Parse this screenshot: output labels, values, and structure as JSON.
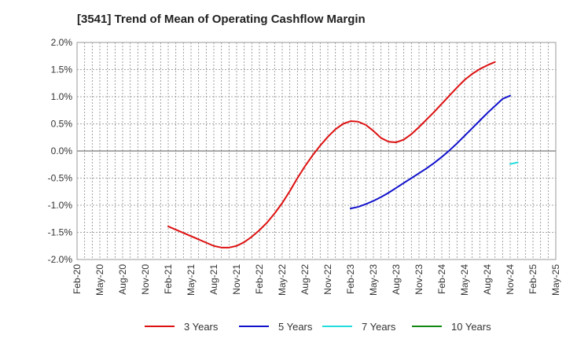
{
  "chart_data": {
    "type": "line",
    "title": "[3541]  Trend of Mean of Operating Cashflow Margin",
    "xlabel": "",
    "ylabel": "",
    "categories": [
      "Feb-20",
      "May-20",
      "Aug-20",
      "Nov-20",
      "Feb-21",
      "May-21",
      "Aug-21",
      "Nov-21",
      "Feb-22",
      "May-22",
      "Aug-22",
      "Nov-22",
      "Feb-23",
      "May-23",
      "Aug-23",
      "Nov-23",
      "Feb-24",
      "May-24",
      "Aug-24",
      "Nov-24",
      "Feb-25",
      "May-25"
    ],
    "y_ticks": [
      "2.0%",
      "1.5%",
      "1.0%",
      "0.5%",
      "0.0%",
      "-0.5%",
      "-1.0%",
      "-1.5%",
      "-2.0%"
    ],
    "ylim": [
      -2.0,
      2.0
    ],
    "y_unit": "%",
    "grid": true,
    "legend_position": "bottom",
    "series": [
      {
        "name": "3 Years",
        "color": "#dd1111",
        "points": [
          [
            "Feb-21",
            -1.39
          ],
          [
            "Mar-21",
            -1.45
          ],
          [
            "Apr-21",
            -1.51
          ],
          [
            "May-21",
            -1.57
          ],
          [
            "Jun-21",
            -1.63
          ],
          [
            "Jul-21",
            -1.69
          ],
          [
            "Aug-21",
            -1.75
          ],
          [
            "Sep-21",
            -1.78
          ],
          [
            "Oct-21",
            -1.78
          ],
          [
            "Nov-21",
            -1.75
          ],
          [
            "Dec-21",
            -1.68
          ],
          [
            "Jan-22",
            -1.58
          ],
          [
            "Feb-22",
            -1.46
          ],
          [
            "Mar-22",
            -1.32
          ],
          [
            "Apr-22",
            -1.15
          ],
          [
            "May-22",
            -0.96
          ],
          [
            "Jun-22",
            -0.74
          ],
          [
            "Jul-22",
            -0.5
          ],
          [
            "Aug-22",
            -0.28
          ],
          [
            "Sep-22",
            -0.08
          ],
          [
            "Oct-22",
            0.1
          ],
          [
            "Nov-22",
            0.26
          ],
          [
            "Dec-22",
            0.4
          ],
          [
            "Jan-23",
            0.5
          ],
          [
            "Feb-23",
            0.55
          ],
          [
            "Mar-23",
            0.54
          ],
          [
            "Apr-23",
            0.48
          ],
          [
            "May-23",
            0.37
          ],
          [
            "Jun-23",
            0.24
          ],
          [
            "Jul-23",
            0.17
          ],
          [
            "Aug-23",
            0.16
          ],
          [
            "Sep-23",
            0.21
          ],
          [
            "Oct-23",
            0.31
          ],
          [
            "Nov-23",
            0.44
          ],
          [
            "Dec-23",
            0.58
          ],
          [
            "Jan-24",
            0.72
          ],
          [
            "Feb-24",
            0.87
          ],
          [
            "Mar-24",
            1.02
          ],
          [
            "Apr-24",
            1.17
          ],
          [
            "May-24",
            1.31
          ],
          [
            "Jun-24",
            1.42
          ],
          [
            "Jul-24",
            1.51
          ],
          [
            "Aug-24",
            1.58
          ],
          [
            "Sep-24",
            1.64
          ]
        ]
      },
      {
        "name": "5 Years",
        "color": "#1111cc",
        "points": [
          [
            "Feb-23",
            -1.06
          ],
          [
            "Mar-23",
            -1.03
          ],
          [
            "Apr-23",
            -0.98
          ],
          [
            "May-23",
            -0.92
          ],
          [
            "Jun-23",
            -0.85
          ],
          [
            "Jul-23",
            -0.77
          ],
          [
            "Aug-23",
            -0.68
          ],
          [
            "Sep-23",
            -0.59
          ],
          [
            "Oct-23",
            -0.5
          ],
          [
            "Nov-23",
            -0.41
          ],
          [
            "Dec-23",
            -0.32
          ],
          [
            "Jan-24",
            -0.22
          ],
          [
            "Feb-24",
            -0.11
          ],
          [
            "Mar-24",
            0.01
          ],
          [
            "Apr-24",
            0.14
          ],
          [
            "May-24",
            0.28
          ],
          [
            "Jun-24",
            0.42
          ],
          [
            "Jul-24",
            0.56
          ],
          [
            "Aug-24",
            0.7
          ],
          [
            "Sep-24",
            0.83
          ],
          [
            "Oct-24",
            0.96
          ],
          [
            "Nov-24",
            1.02
          ]
        ]
      },
      {
        "name": "7 Years",
        "color": "#22dddd",
        "points": [
          [
            "Nov-24",
            -0.24
          ],
          [
            "Dec-24",
            -0.21
          ]
        ]
      },
      {
        "name": "10 Years",
        "color": "#118811",
        "points": []
      }
    ]
  }
}
